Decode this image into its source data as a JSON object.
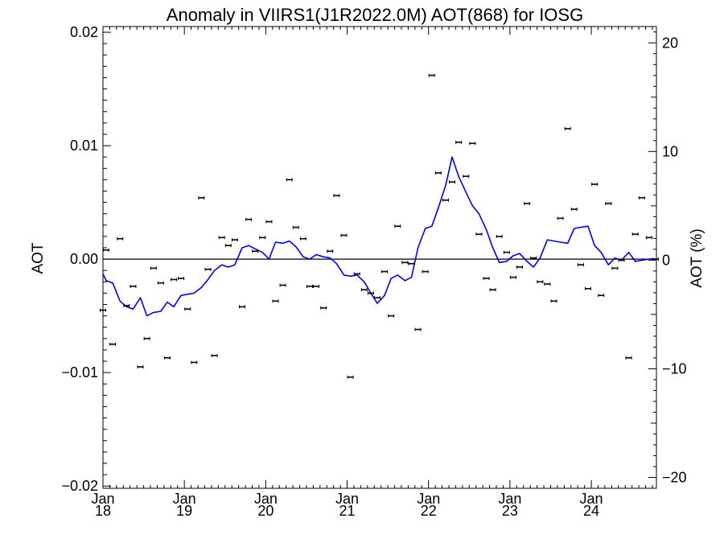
{
  "chart_data": {
    "type": "scatter",
    "title": "Anomaly in VIIRS1(J1R2022.0M) AOT(868) for IOSG",
    "ylabel": "AOT",
    "ylabel_right": "AOT (%)",
    "xlim": [
      2018.0,
      2024.8
    ],
    "ylim": [
      -0.0202,
      0.0205
    ],
    "ylim_right": [
      -21.0,
      21.5
    ],
    "x_ticks": [
      {
        "x": 2018,
        "month": "Jan",
        "year": "18"
      },
      {
        "x": 2019,
        "month": "Jan",
        "year": "19"
      },
      {
        "x": 2020,
        "month": "Jan",
        "year": "20"
      },
      {
        "x": 2021,
        "month": "Jan",
        "year": "21"
      },
      {
        "x": 2022,
        "month": "Jan",
        "year": "22"
      },
      {
        "x": 2023,
        "month": "Jan",
        "year": "23"
      },
      {
        "x": 2024,
        "month": "Jan",
        "year": "24"
      }
    ],
    "y_ticks_left": [
      {
        "value": 0.02,
        "label": "0.02"
      },
      {
        "value": 0.01,
        "label": "0.01"
      },
      {
        "value": 0.0,
        "label": "0.00"
      },
      {
        "value": -0.01,
        "label": "−0.01"
      },
      {
        "value": -0.02,
        "label": "−0.02"
      }
    ],
    "y_ticks_right": [
      {
        "value": 20,
        "label": "20"
      },
      {
        "value": 10,
        "label": "10"
      },
      {
        "value": 0,
        "label": "0"
      },
      {
        "value": -10,
        "label": "−10"
      },
      {
        "value": -20,
        "label": "−20"
      }
    ],
    "reference_line": 0.0,
    "colors": {
      "points": "#000000",
      "smooth_line": "#0000ee",
      "zero_line": "#000000"
    },
    "series": [
      {
        "kind": "monthly-anomaly-points",
        "x": [
          2018.0,
          2018.04,
          2018.12,
          2018.21,
          2018.29,
          2018.37,
          2018.46,
          2018.54,
          2018.62,
          2018.71,
          2018.79,
          2018.87,
          2018.96,
          2019.04,
          2019.12,
          2019.21,
          2019.29,
          2019.37,
          2019.46,
          2019.54,
          2019.62,
          2019.71,
          2019.79,
          2019.87,
          2019.96,
          2020.04,
          2020.12,
          2020.21,
          2020.29,
          2020.37,
          2020.46,
          2020.54,
          2020.62,
          2020.71,
          2020.79,
          2020.87,
          2020.96,
          2021.04,
          2021.12,
          2021.21,
          2021.29,
          2021.37,
          2021.46,
          2021.54,
          2021.62,
          2021.71,
          2021.79,
          2021.87,
          2021.96,
          2022.04,
          2022.12,
          2022.21,
          2022.29,
          2022.37,
          2022.46,
          2022.54,
          2022.62,
          2022.71,
          2022.79,
          2022.87,
          2022.96,
          2023.04,
          2023.12,
          2023.21,
          2023.29,
          2023.37,
          2023.46,
          2023.54,
          2023.62,
          2023.71,
          2023.79,
          2023.87,
          2023.96,
          2024.04,
          2024.12,
          2024.21,
          2024.29,
          2024.37,
          2024.46,
          2024.54,
          2024.62,
          2024.71,
          2024.79
        ],
        "y": [
          -0.0045,
          0.0008,
          -0.0075,
          0.0018,
          -0.0041,
          -0.0024,
          -0.0095,
          -0.007,
          -0.0008,
          -0.0021,
          -0.0087,
          -0.0018,
          -0.0017,
          -0.0044,
          -0.0091,
          0.0054,
          -0.0009,
          -0.0085,
          0.0019,
          0.0012,
          0.0017,
          -0.0042,
          0.0035,
          0.0007,
          0.0019,
          0.0033,
          -0.0037,
          -0.0023,
          0.007,
          0.0028,
          0.0018,
          -0.0024,
          -0.0024,
          -0.0043,
          0.0007,
          0.0056,
          0.0021,
          -0.0104,
          -0.0013,
          -0.0027,
          -0.003,
          -0.0034,
          -0.0011,
          -0.005,
          0.0029,
          -0.0003,
          -0.0004,
          -0.0062,
          -0.0011,
          0.0162,
          0.0076,
          0.0052,
          0.0068,
          0.0103,
          0.0073,
          0.0102,
          0.0022,
          -0.0017,
          -0.0027,
          0.002,
          0.0006,
          -0.0016,
          -0.0007,
          0.0049,
          0.0001,
          -0.002,
          -0.0022,
          -0.0037,
          0.0036,
          0.0115,
          0.0044,
          -0.0005,
          -0.0026,
          0.0066,
          -0.0032,
          0.0049,
          -0.0008,
          -0.0001,
          -0.0087,
          0.0022,
          0.0054,
          0.0019,
          0.0
        ]
      },
      {
        "kind": "smoothed-line",
        "x": [
          2018.0,
          2018.04,
          2018.12,
          2018.21,
          2018.29,
          2018.37,
          2018.46,
          2018.54,
          2018.62,
          2018.71,
          2018.79,
          2018.87,
          2018.96,
          2019.04,
          2019.12,
          2019.21,
          2019.29,
          2019.37,
          2019.46,
          2019.54,
          2019.62,
          2019.71,
          2019.79,
          2019.87,
          2019.96,
          2020.04,
          2020.12,
          2020.21,
          2020.29,
          2020.37,
          2020.46,
          2020.54,
          2020.62,
          2020.71,
          2020.79,
          2020.87,
          2020.96,
          2021.04,
          2021.12,
          2021.21,
          2021.29,
          2021.37,
          2021.46,
          2021.54,
          2021.62,
          2021.71,
          2021.79,
          2021.87,
          2021.96,
          2022.04,
          2022.12,
          2022.21,
          2022.29,
          2022.37,
          2022.46,
          2022.54,
          2022.62,
          2022.71,
          2022.79,
          2022.87,
          2022.96,
          2023.04,
          2023.12,
          2023.21,
          2023.29,
          2023.37,
          2023.46,
          2023.54,
          2023.62,
          2023.71,
          2023.79,
          2023.87,
          2023.96,
          2024.04,
          2024.12,
          2024.21,
          2024.29,
          2024.37,
          2024.46,
          2024.54,
          2024.62,
          2024.71,
          2024.79
        ],
        "y": [
          -0.0013,
          -0.0019,
          -0.0021,
          -0.0037,
          -0.0042,
          -0.0044,
          -0.0034,
          -0.005,
          -0.0047,
          -0.0046,
          -0.0038,
          -0.0042,
          -0.0032,
          -0.0031,
          -0.003,
          -0.0025,
          -0.0018,
          -0.001,
          -0.0005,
          -0.0007,
          -0.0005,
          0.001,
          0.0012,
          0.0009,
          0.0006,
          0.0,
          0.0015,
          0.0014,
          0.0016,
          0.0011,
          0.0002,
          0.0,
          0.0004,
          0.0002,
          0.0001,
          -0.0004,
          -0.0014,
          -0.0015,
          -0.0014,
          -0.002,
          -0.003,
          -0.0039,
          -0.0032,
          -0.0017,
          -0.0014,
          -0.0019,
          -0.0016,
          0.001,
          0.0027,
          0.0029,
          0.0045,
          0.0065,
          0.009,
          0.0073,
          0.0059,
          0.0047,
          0.004,
          0.0026,
          0.001,
          -0.0003,
          -0.0002,
          0.0003,
          0.0005,
          -0.0002,
          -0.0007,
          0.0001,
          0.0017,
          0.0016,
          0.0015,
          0.0014,
          0.0027,
          0.0028,
          0.0029,
          0.0012,
          0.0006,
          -0.0005,
          0.0001,
          -0.0001,
          0.0006,
          -0.0002,
          -0.0001,
          0.0,
          0.0
        ]
      }
    ]
  }
}
